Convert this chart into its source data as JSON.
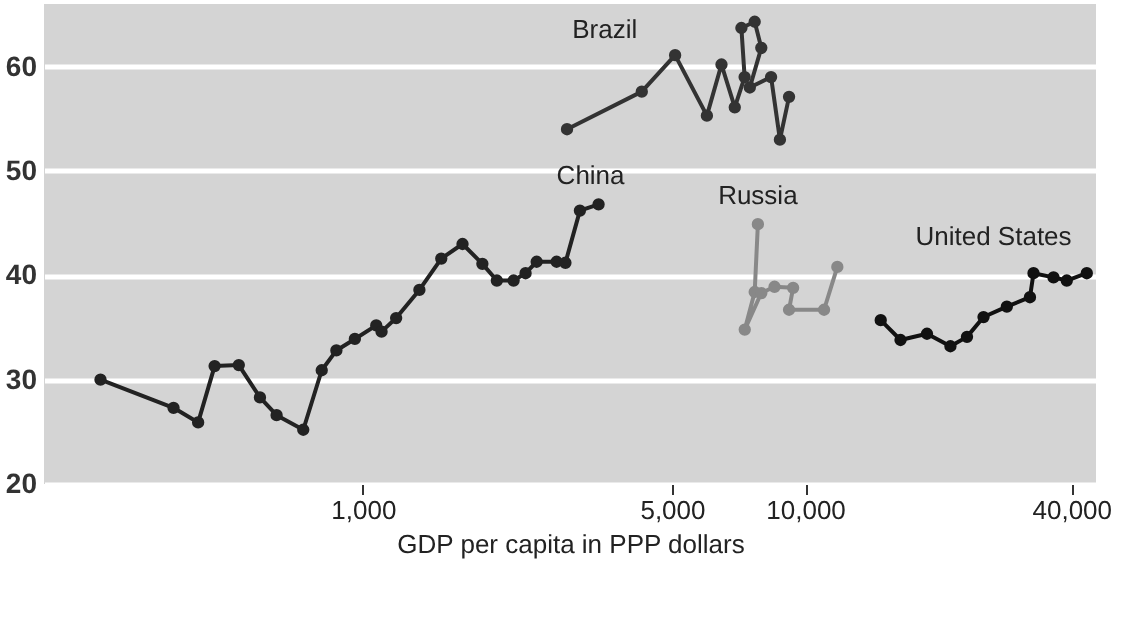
{
  "chart_data": {
    "type": "line",
    "xlabel": "GDP per capita in PPP dollars",
    "log": "x",
    "grid": "y",
    "marker": "circle",
    "line_style": "solid",
    "legend": false,
    "xlim": [
      190,
      45500
    ],
    "ylim": [
      20,
      66
    ],
    "xticks": [
      {
        "value": 1000,
        "label": "1,000"
      },
      {
        "value": 5000,
        "label": "5,000"
      },
      {
        "value": 10000,
        "label": "10,000"
      },
      {
        "value": 40000,
        "label": "40,000"
      }
    ],
    "yticks": [
      20,
      30,
      40,
      50,
      60
    ],
    "series": [
      {
        "name": "China",
        "color": "#222222",
        "x": [
          255,
          373,
          424,
          462,
          524,
          585,
          638,
          733,
          807,
          871,
          959,
          1072,
          1102,
          1189,
          1342,
          1504,
          1680,
          1863,
          2009,
          2192,
          2333,
          2472,
          2742,
          2871,
          3096,
          3412
        ],
        "values": [
          30.0,
          27.3,
          25.9,
          31.3,
          31.4,
          28.3,
          26.6,
          25.2,
          30.9,
          32.8,
          33.9,
          35.2,
          34.6,
          35.9,
          38.6,
          41.6,
          43.0,
          41.1,
          39.5,
          39.5,
          40.2,
          41.3,
          41.3,
          41.2,
          46.2,
          46.8
        ]
      },
      {
        "name": "Brazil",
        "color": "#333333",
        "x": [
          2895,
          4273,
          5083,
          5998,
          6471,
          6935,
          7300,
          7178,
          7693,
          7962,
          7500,
          8378,
          8773,
          9200
        ],
        "values": [
          54.0,
          57.6,
          61.1,
          55.3,
          60.2,
          56.1,
          59.0,
          63.7,
          64.3,
          61.8,
          58.0,
          59.0,
          53.0,
          57.1
        ]
      },
      {
        "name": "Russia",
        "color": "#888888",
        "x": [
          7822,
          7693,
          7305,
          7962,
          8530,
          9397,
          9200,
          11040,
          11830
        ],
        "values": [
          44.9,
          38.4,
          34.8,
          38.3,
          38.9,
          38.8,
          36.7,
          36.7,
          40.8
        ]
      },
      {
        "name": "United States",
        "color": "#111111",
        "x": [
          14830,
          16440,
          18870,
          21320,
          23240,
          25330,
          28600,
          32260,
          32860,
          36470,
          39080,
          43370
        ],
        "values": [
          35.7,
          33.8,
          34.4,
          33.2,
          34.1,
          36.0,
          37.0,
          37.9,
          40.2,
          39.8,
          39.5,
          40.2
        ]
      }
    ]
  }
}
